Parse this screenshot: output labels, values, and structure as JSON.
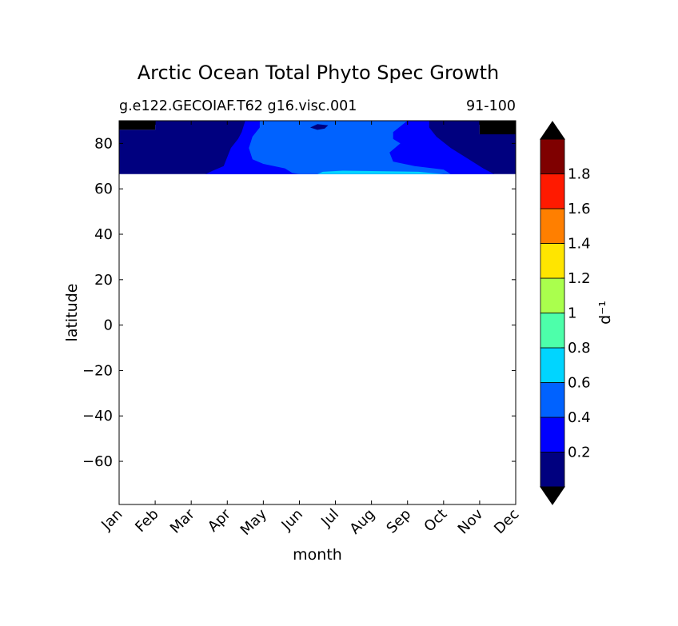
{
  "chart_data": {
    "type": "heatmap",
    "title": "Arctic Ocean Total Phyto Spec Growth",
    "subtitle_left": "g.e122.GECOIAF.T62 g16.visc.001",
    "subtitle_right": "91-100",
    "xlabel": "month",
    "ylabel": "latitude",
    "xlim": [
      0,
      11
    ],
    "ylim": [
      -79,
      90
    ],
    "x_tick_labels": [
      "Jan",
      "Feb",
      "Mar",
      "Apr",
      "May",
      "Jun",
      "Jul",
      "Aug",
      "Sep",
      "Oct",
      "Nov",
      "Dec"
    ],
    "y_ticks": [
      80,
      60,
      40,
      20,
      0,
      -20,
      -40,
      -60
    ],
    "y_tick_labels": [
      "80",
      "60",
      "40",
      "20",
      "0",
      "−20",
      "−40",
      "−60"
    ],
    "data_lat_range": [
      66.5,
      90
    ],
    "colorbar": {
      "label": "d⁻¹",
      "levels": [
        0.0,
        0.2,
        0.4,
        0.6,
        0.8,
        1.0,
        1.2,
        1.4,
        1.6,
        1.8,
        2.0
      ],
      "tick_labels": [
        "0.2",
        "0.4",
        "0.6",
        "0.8",
        "1",
        "1.2",
        "1.4",
        "1.6",
        "1.8"
      ],
      "colors": [
        "#00007f",
        "#0000ff",
        "#0062ff",
        "#00d5ff",
        "#4dffaa",
        "#aaff4d",
        "#ffe500",
        "#ff7f00",
        "#ff1a00",
        "#7f0000"
      ],
      "under_color": "#000000",
      "over_color": "#000000"
    },
    "regions": [
      {
        "name": "below-range (black) corners",
        "value": "<0",
        "points": [
          [
            0,
            90
          ],
          [
            1,
            90
          ],
          [
            1,
            86
          ],
          [
            0,
            86
          ],
          [
            0,
            90
          ]
        ]
      },
      {
        "name": "0.0-0.2 band",
        "value": "0-0.2",
        "points": [
          [
            0,
            86
          ],
          [
            1,
            86
          ],
          [
            1,
            90
          ],
          [
            10,
            90
          ],
          [
            10,
            84
          ],
          [
            11,
            84
          ],
          [
            11,
            66.5
          ],
          [
            0,
            66.5
          ]
        ]
      },
      {
        "name": "0.2-0.4 band",
        "value": "0.2-0.4",
        "points": [
          [
            2.4,
            66.5
          ],
          [
            2.6,
            68
          ],
          [
            2.9,
            70
          ],
          [
            3.0,
            74
          ],
          [
            3.1,
            78
          ],
          [
            3.3,
            82
          ],
          [
            3.4,
            85
          ],
          [
            3.5,
            90
          ],
          [
            8.6,
            90
          ],
          [
            8.6,
            87
          ],
          [
            8.8,
            83
          ],
          [
            9.2,
            78
          ],
          [
            9.7,
            73
          ],
          [
            10.1,
            69
          ],
          [
            10.4,
            66.5
          ]
        ]
      },
      {
        "name": "0.4-0.6 band",
        "value": "0.4-0.6",
        "points": [
          [
            5.0,
            66.5
          ],
          [
            4.8,
            67
          ],
          [
            4.6,
            69
          ],
          [
            4.0,
            71
          ],
          [
            3.7,
            73
          ],
          [
            3.6,
            78
          ],
          [
            3.7,
            83
          ],
          [
            3.9,
            87
          ],
          [
            3.9,
            90
          ],
          [
            8.0,
            90
          ],
          [
            7.6,
            85
          ],
          [
            7.6,
            82
          ],
          [
            7.8,
            80
          ],
          [
            7.5,
            76
          ],
          [
            7.6,
            72
          ],
          [
            8.2,
            70
          ],
          [
            9.0,
            68.5
          ],
          [
            9.2,
            66.5
          ]
        ]
      },
      {
        "name": "0.6-0.8 band",
        "value": "0.6-0.8",
        "points": [
          [
            5.5,
            66.5
          ],
          [
            5.65,
            67.5
          ],
          [
            6.2,
            68
          ],
          [
            7.2,
            67.8
          ],
          [
            8.3,
            67.5
          ],
          [
            9.0,
            66.5
          ]
        ]
      }
    ],
    "region_order_note": "regions drawn in listed order; inner bands overlay outer bands"
  },
  "inner_hole": {
    "value": "0-0.2 notch near Jun",
    "points": [
      [
        5.3,
        87
      ],
      [
        5.5,
        86
      ],
      [
        5.7,
        86.5
      ],
      [
        5.8,
        88
      ],
      [
        5.5,
        88.5
      ]
    ]
  },
  "corner_right": {
    "value": "<0",
    "points": [
      [
        10,
        90
      ],
      [
        11,
        90
      ],
      [
        11,
        84
      ],
      [
        10,
        84
      ]
    ]
  }
}
